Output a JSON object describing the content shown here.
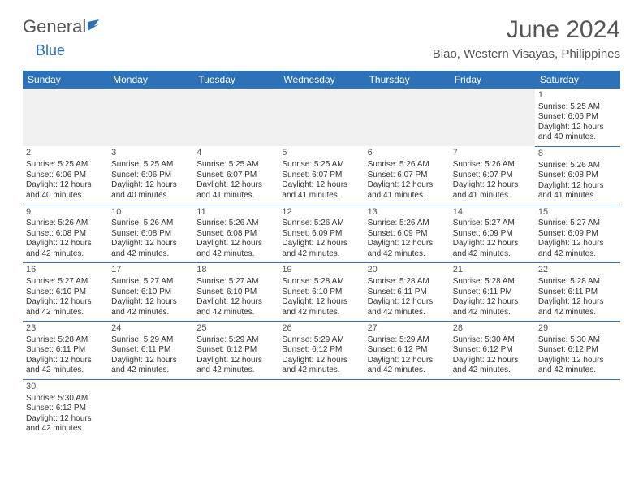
{
  "logo": {
    "general": "General",
    "blue": "Blue"
  },
  "title": "June 2024",
  "location": "Biao, Western Visayas, Philippines",
  "colors": {
    "header_bg": "#2d72b8",
    "header_text": "#ffffff",
    "blank_bg": "#f0f0f0",
    "border": "#2d72b8",
    "text": "#333333",
    "title_text": "#555555"
  },
  "days_of_week": [
    "Sunday",
    "Monday",
    "Tuesday",
    "Wednesday",
    "Thursday",
    "Friday",
    "Saturday"
  ],
  "weeks": [
    [
      null,
      null,
      null,
      null,
      null,
      null,
      {
        "num": "1",
        "sunrise": "Sunrise: 5:25 AM",
        "sunset": "Sunset: 6:06 PM",
        "daylight1": "Daylight: 12 hours",
        "daylight2": "and 40 minutes."
      }
    ],
    [
      {
        "num": "2",
        "sunrise": "Sunrise: 5:25 AM",
        "sunset": "Sunset: 6:06 PM",
        "daylight1": "Daylight: 12 hours",
        "daylight2": "and 40 minutes."
      },
      {
        "num": "3",
        "sunrise": "Sunrise: 5:25 AM",
        "sunset": "Sunset: 6:06 PM",
        "daylight1": "Daylight: 12 hours",
        "daylight2": "and 40 minutes."
      },
      {
        "num": "4",
        "sunrise": "Sunrise: 5:25 AM",
        "sunset": "Sunset: 6:07 PM",
        "daylight1": "Daylight: 12 hours",
        "daylight2": "and 41 minutes."
      },
      {
        "num": "5",
        "sunrise": "Sunrise: 5:25 AM",
        "sunset": "Sunset: 6:07 PM",
        "daylight1": "Daylight: 12 hours",
        "daylight2": "and 41 minutes."
      },
      {
        "num": "6",
        "sunrise": "Sunrise: 5:26 AM",
        "sunset": "Sunset: 6:07 PM",
        "daylight1": "Daylight: 12 hours",
        "daylight2": "and 41 minutes."
      },
      {
        "num": "7",
        "sunrise": "Sunrise: 5:26 AM",
        "sunset": "Sunset: 6:07 PM",
        "daylight1": "Daylight: 12 hours",
        "daylight2": "and 41 minutes."
      },
      {
        "num": "8",
        "sunrise": "Sunrise: 5:26 AM",
        "sunset": "Sunset: 6:08 PM",
        "daylight1": "Daylight: 12 hours",
        "daylight2": "and 41 minutes."
      }
    ],
    [
      {
        "num": "9",
        "sunrise": "Sunrise: 5:26 AM",
        "sunset": "Sunset: 6:08 PM",
        "daylight1": "Daylight: 12 hours",
        "daylight2": "and 42 minutes."
      },
      {
        "num": "10",
        "sunrise": "Sunrise: 5:26 AM",
        "sunset": "Sunset: 6:08 PM",
        "daylight1": "Daylight: 12 hours",
        "daylight2": "and 42 minutes."
      },
      {
        "num": "11",
        "sunrise": "Sunrise: 5:26 AM",
        "sunset": "Sunset: 6:08 PM",
        "daylight1": "Daylight: 12 hours",
        "daylight2": "and 42 minutes."
      },
      {
        "num": "12",
        "sunrise": "Sunrise: 5:26 AM",
        "sunset": "Sunset: 6:09 PM",
        "daylight1": "Daylight: 12 hours",
        "daylight2": "and 42 minutes."
      },
      {
        "num": "13",
        "sunrise": "Sunrise: 5:26 AM",
        "sunset": "Sunset: 6:09 PM",
        "daylight1": "Daylight: 12 hours",
        "daylight2": "and 42 minutes."
      },
      {
        "num": "14",
        "sunrise": "Sunrise: 5:27 AM",
        "sunset": "Sunset: 6:09 PM",
        "daylight1": "Daylight: 12 hours",
        "daylight2": "and 42 minutes."
      },
      {
        "num": "15",
        "sunrise": "Sunrise: 5:27 AM",
        "sunset": "Sunset: 6:09 PM",
        "daylight1": "Daylight: 12 hours",
        "daylight2": "and 42 minutes."
      }
    ],
    [
      {
        "num": "16",
        "sunrise": "Sunrise: 5:27 AM",
        "sunset": "Sunset: 6:10 PM",
        "daylight1": "Daylight: 12 hours",
        "daylight2": "and 42 minutes."
      },
      {
        "num": "17",
        "sunrise": "Sunrise: 5:27 AM",
        "sunset": "Sunset: 6:10 PM",
        "daylight1": "Daylight: 12 hours",
        "daylight2": "and 42 minutes."
      },
      {
        "num": "18",
        "sunrise": "Sunrise: 5:27 AM",
        "sunset": "Sunset: 6:10 PM",
        "daylight1": "Daylight: 12 hours",
        "daylight2": "and 42 minutes."
      },
      {
        "num": "19",
        "sunrise": "Sunrise: 5:28 AM",
        "sunset": "Sunset: 6:10 PM",
        "daylight1": "Daylight: 12 hours",
        "daylight2": "and 42 minutes."
      },
      {
        "num": "20",
        "sunrise": "Sunrise: 5:28 AM",
        "sunset": "Sunset: 6:11 PM",
        "daylight1": "Daylight: 12 hours",
        "daylight2": "and 42 minutes."
      },
      {
        "num": "21",
        "sunrise": "Sunrise: 5:28 AM",
        "sunset": "Sunset: 6:11 PM",
        "daylight1": "Daylight: 12 hours",
        "daylight2": "and 42 minutes."
      },
      {
        "num": "22",
        "sunrise": "Sunrise: 5:28 AM",
        "sunset": "Sunset: 6:11 PM",
        "daylight1": "Daylight: 12 hours",
        "daylight2": "and 42 minutes."
      }
    ],
    [
      {
        "num": "23",
        "sunrise": "Sunrise: 5:28 AM",
        "sunset": "Sunset: 6:11 PM",
        "daylight1": "Daylight: 12 hours",
        "daylight2": "and 42 minutes."
      },
      {
        "num": "24",
        "sunrise": "Sunrise: 5:29 AM",
        "sunset": "Sunset: 6:11 PM",
        "daylight1": "Daylight: 12 hours",
        "daylight2": "and 42 minutes."
      },
      {
        "num": "25",
        "sunrise": "Sunrise: 5:29 AM",
        "sunset": "Sunset: 6:12 PM",
        "daylight1": "Daylight: 12 hours",
        "daylight2": "and 42 minutes."
      },
      {
        "num": "26",
        "sunrise": "Sunrise: 5:29 AM",
        "sunset": "Sunset: 6:12 PM",
        "daylight1": "Daylight: 12 hours",
        "daylight2": "and 42 minutes."
      },
      {
        "num": "27",
        "sunrise": "Sunrise: 5:29 AM",
        "sunset": "Sunset: 6:12 PM",
        "daylight1": "Daylight: 12 hours",
        "daylight2": "and 42 minutes."
      },
      {
        "num": "28",
        "sunrise": "Sunrise: 5:30 AM",
        "sunset": "Sunset: 6:12 PM",
        "daylight1": "Daylight: 12 hours",
        "daylight2": "and 42 minutes."
      },
      {
        "num": "29",
        "sunrise": "Sunrise: 5:30 AM",
        "sunset": "Sunset: 6:12 PM",
        "daylight1": "Daylight: 12 hours",
        "daylight2": "and 42 minutes."
      }
    ],
    [
      {
        "num": "30",
        "sunrise": "Sunrise: 5:30 AM",
        "sunset": "Sunset: 6:12 PM",
        "daylight1": "Daylight: 12 hours",
        "daylight2": "and 42 minutes."
      },
      null,
      null,
      null,
      null,
      null,
      null
    ]
  ]
}
